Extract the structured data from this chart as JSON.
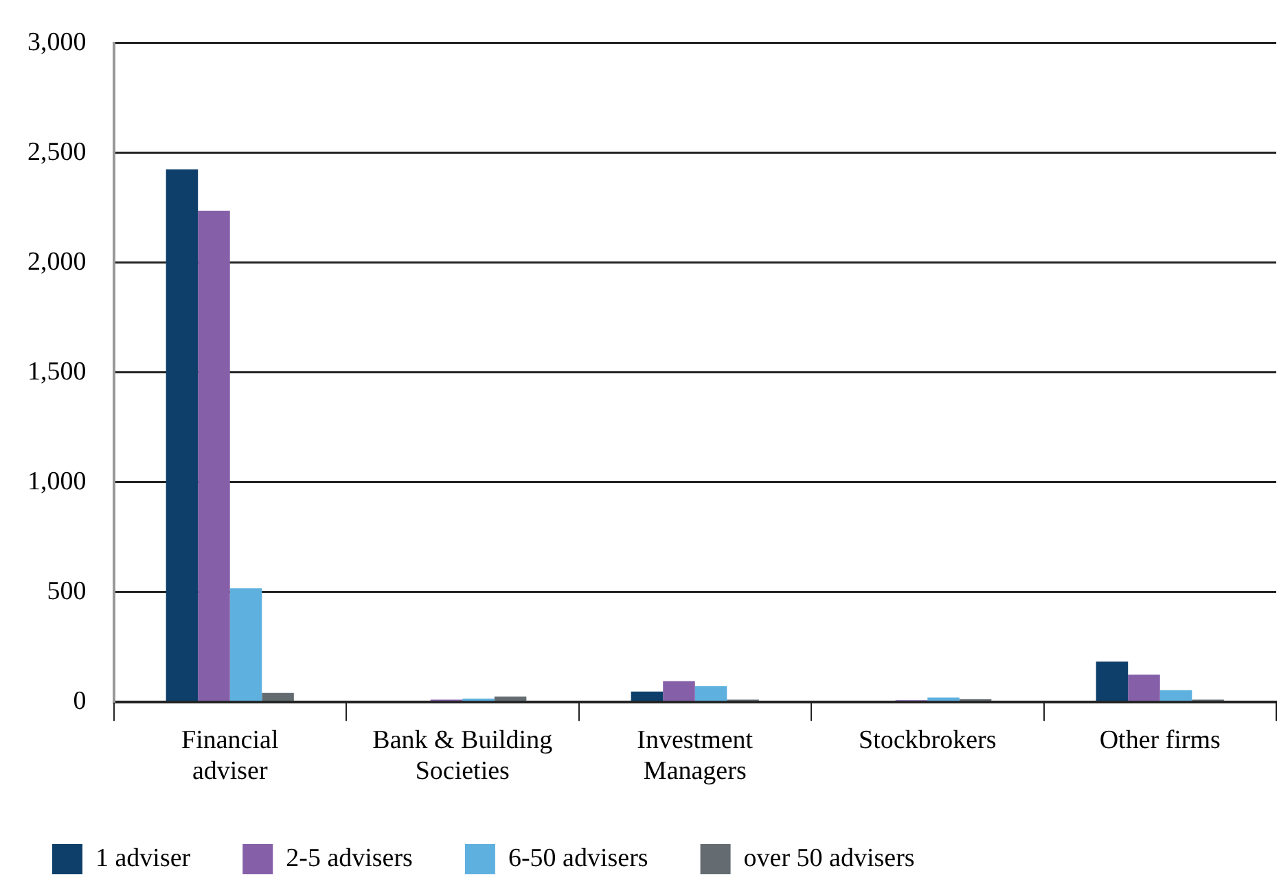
{
  "chart_data": {
    "type": "bar",
    "categories": [
      "Financial adviser",
      "Bank & Building Societies",
      "Investment Managers",
      "Stockbrokers",
      "Other firms"
    ],
    "series": [
      {
        "name": "1 adviser",
        "color": "#0e3f6a",
        "values": [
          2425,
          5,
          47,
          5,
          184
        ]
      },
      {
        "name": "2-5 advisers",
        "color": "#8560a8",
        "values": [
          2237,
          10,
          95,
          8,
          124
        ]
      },
      {
        "name": "6-50 advisers",
        "color": "#5eb0de",
        "values": [
          517,
          15,
          71,
          20,
          53
        ]
      },
      {
        "name": "over 50 advisers",
        "color": "#646c71",
        "values": [
          41,
          24,
          10,
          12,
          10
        ]
      }
    ],
    "ylim": [
      0,
      3000
    ],
    "yticks": [
      0,
      500,
      {
        "value": 1000,
        "label": "1,000"
      },
      {
        "value": 1500,
        "label": "1,500"
      },
      {
        "value": 2000,
        "label": "2,000"
      },
      {
        "value": 2500,
        "label": "2,500"
      },
      {
        "value": 3000,
        "label": "3,000"
      }
    ],
    "grid": "y",
    "legend": "bottom"
  }
}
